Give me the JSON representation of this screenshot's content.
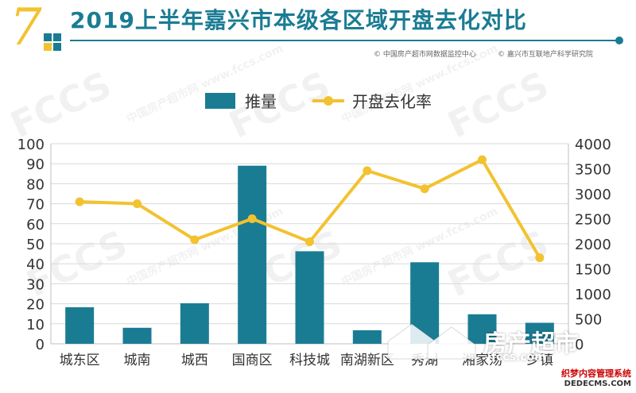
{
  "header": {
    "number": "7",
    "title": "2019上半年嘉兴市本级各区域开盘去化对比",
    "source_left": "© 中国房产超市网数据监控中心",
    "source_right": "© 嘉兴市互联地产科学研究院"
  },
  "watermark": {
    "text": "FCCS",
    "sub": "中国房产超市网 www.fccs.com"
  },
  "badge": {
    "text": "房产超市",
    "sub": "fccs.com"
  },
  "footer_mark": {
    "top": "织梦内容管理系统",
    "bottom": "DEDECMS.COM"
  },
  "colors": {
    "bar": "#1a7c93",
    "line": "#f2c230",
    "title": "#1a7c93",
    "accent": "#f2c230"
  },
  "chart_data": {
    "type": "bar",
    "categories": [
      "城东区",
      "城南",
      "城西",
      "国商区",
      "科技城",
      "南湖新区",
      "秀湖",
      "湘家荡",
      "乡镇"
    ],
    "series": [
      {
        "name": "推量",
        "type": "bar",
        "axis": "right",
        "values": [
          730,
          320,
          810,
          3560,
          1850,
          270,
          1630,
          590,
          420
        ]
      },
      {
        "name": "开盘去化率",
        "type": "line",
        "axis": "left",
        "values": [
          71,
          70,
          52,
          62.5,
          51,
          86.5,
          77.5,
          92,
          43
        ]
      }
    ],
    "yleft": {
      "min": 0,
      "max": 100,
      "ticks": [
        0,
        10,
        20,
        30,
        40,
        50,
        60,
        70,
        80,
        90,
        100
      ]
    },
    "yright": {
      "min": 0,
      "max": 4000,
      "ticks": [
        0,
        500,
        1000,
        1500,
        2000,
        2500,
        3000,
        3500,
        4000
      ]
    },
    "grid": true,
    "legend": "top-center"
  }
}
